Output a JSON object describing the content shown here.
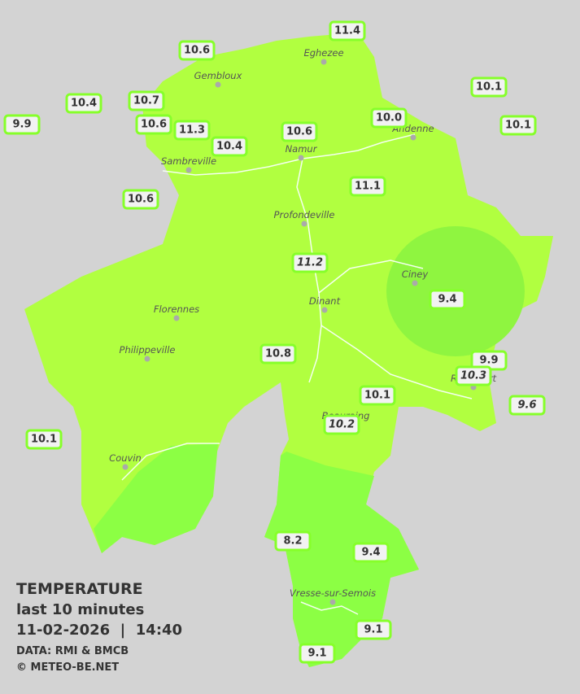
{
  "legend": {
    "title": "TEMPERATURE",
    "subtitle": "last 10 minutes",
    "timestamp": "11-02-2026  |  14:40",
    "source": "DATA: RMI & BMCB",
    "credit": "© METEO-BE.NET"
  },
  "cities": [
    "Eghezee",
    "Gembloux",
    "Andenne",
    "Namur",
    "Sambreville",
    "Profondeville",
    "Ciney",
    "Dinant",
    "Florennes",
    "Philippeville",
    "Rochefort",
    "Beauraing",
    "Couvin",
    "Vresse-sur-Semois"
  ],
  "stations": [
    "10.6",
    "11.4",
    "10.1",
    "10.4",
    "10.7",
    "9.9",
    "10.6",
    "11.3",
    "10.4",
    "10.6",
    "10.0",
    "10.1",
    "10.6",
    "11.1",
    "11.2",
    "9.4",
    "10.8",
    "9.9",
    "10.3",
    "10.1",
    "9.6",
    "10.2",
    "10.1",
    "8.2",
    "9.4",
    "9.1",
    "9.1"
  ]
}
